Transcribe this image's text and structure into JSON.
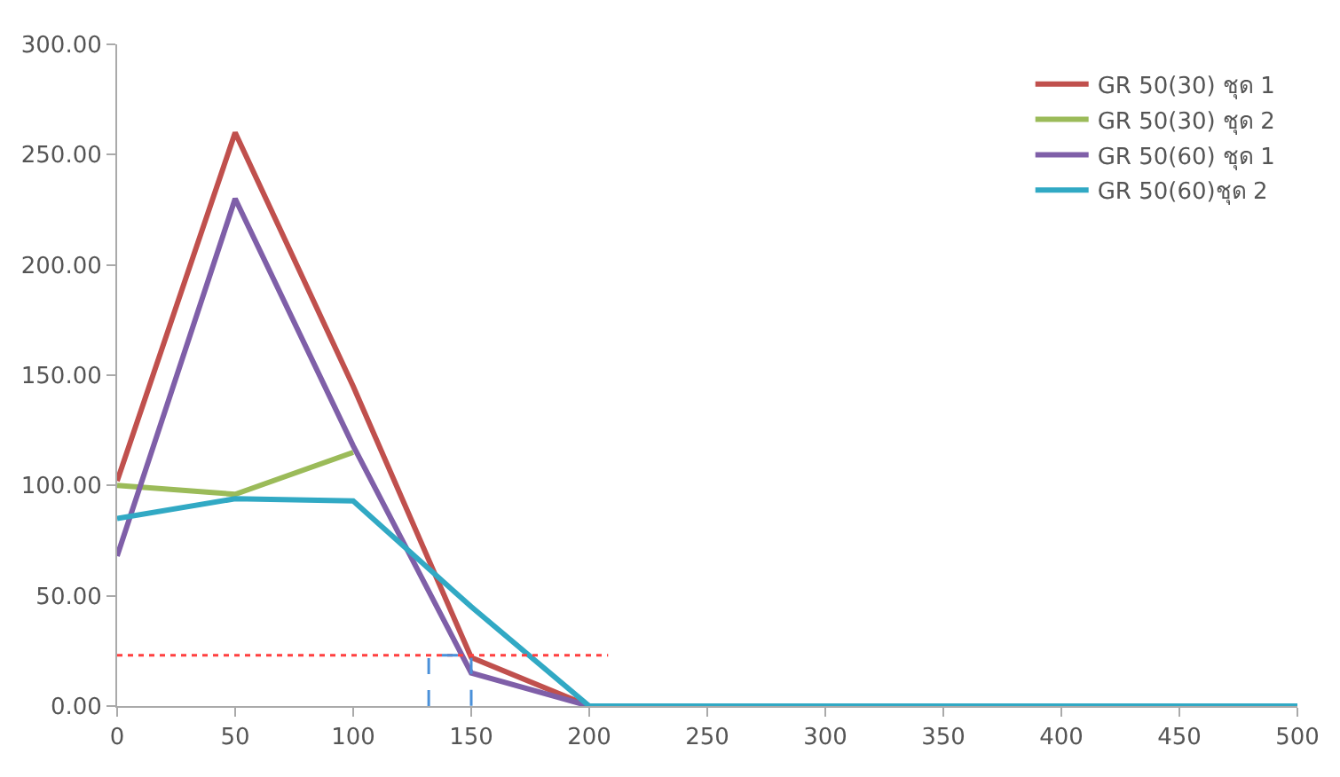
{
  "chart_data": {
    "type": "line",
    "x": [
      0,
      50,
      100,
      150,
      200,
      250,
      300,
      350,
      400,
      450,
      500
    ],
    "series": [
      {
        "name": "GR 50(30) ชุด 1",
        "color": "#c0504d",
        "values": [
          102,
          260,
          145,
          22,
          0,
          null,
          null,
          null,
          null,
          null,
          null
        ]
      },
      {
        "name": "GR 50(30) ชุด 2",
        "color": "#9bbb59",
        "values": [
          100,
          96,
          115,
          null,
          null,
          null,
          null,
          null,
          null,
          null,
          null
        ]
      },
      {
        "name": "GR 50(60) ชุด 1",
        "color": "#7f5fa8",
        "values": [
          68,
          230,
          118,
          15,
          0,
          null,
          null,
          null,
          null,
          null,
          null
        ]
      },
      {
        "name": "GR 50(60)ชุด 2",
        "color": "#31a9c4",
        "values": [
          85,
          94,
          93,
          45,
          0,
          0,
          0,
          0,
          0,
          0,
          0
        ]
      },
      {
        "color": "#ff4040",
        "x": [
          0,
          208
        ],
        "values": [
          23,
          23
        ],
        "line_style": "dotted"
      },
      {
        "color": "#4a90d9",
        "x": [
          132,
          132,
          150,
          150
        ],
        "values": [
          0,
          23,
          23,
          0
        ],
        "line_style": "dashed"
      }
    ],
    "xlim": [
      0,
      500
    ],
    "xticks": [
      0,
      50,
      100,
      150,
      200,
      250,
      300,
      350,
      400,
      450,
      500
    ],
    "ylim": [
      0,
      300
    ],
    "yticks": [
      {
        "value": 0,
        "label": "0.00"
      },
      {
        "value": 50,
        "label": "50.00"
      },
      {
        "value": 100,
        "label": "100.00"
      },
      {
        "value": 150,
        "label": "150.00"
      },
      {
        "value": 200,
        "label": "200.00"
      },
      {
        "value": 250,
        "label": "250.00"
      },
      {
        "value": 300,
        "label": "300.00"
      }
    ],
    "legend": "top right",
    "line_style": "solid",
    "marker": "none"
  }
}
